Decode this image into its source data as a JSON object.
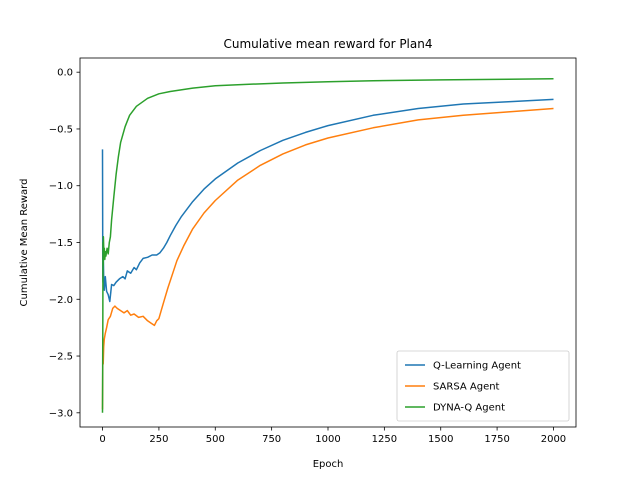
{
  "chart_data": {
    "type": "line",
    "title": "Cumulative mean reward for Plan4",
    "xlabel": "Epoch",
    "ylabel": "Cumulative Mean Reward",
    "xlim": [
      -100,
      2100
    ],
    "ylim": [
      -3.125,
      0.125
    ],
    "xticks": [
      0,
      250,
      500,
      750,
      1000,
      1250,
      1500,
      1750,
      2000
    ],
    "yticks": [
      0.0,
      -0.5,
      -1.0,
      -1.5,
      -2.0,
      -2.5,
      -3.0
    ],
    "xtick_labels": [
      "0",
      "250",
      "500",
      "750",
      "1000",
      "1250",
      "1500",
      "1750",
      "2000"
    ],
    "ytick_labels": [
      "0.0",
      "−0.5",
      "−1.0",
      "−1.5",
      "−2.0",
      "−2.5",
      "−3.0"
    ],
    "grid": false,
    "legend_position": "lower-right",
    "series": [
      {
        "name": "Q-Learning Agent",
        "color": "#1f77b4",
        "x": [
          0,
          1,
          2,
          3,
          5,
          8,
          12,
          18,
          25,
          32,
          40,
          50,
          60,
          75,
          90,
          100,
          110,
          125,
          140,
          150,
          165,
          180,
          200,
          220,
          240,
          255,
          270,
          285,
          300,
          325,
          350,
          400,
          450,
          500,
          600,
          700,
          800,
          900,
          1000,
          1200,
          1400,
          1600,
          1800,
          2000
        ],
        "y": [
          -0.68,
          -1.8,
          -1.85,
          -1.55,
          -1.82,
          -1.92,
          -1.8,
          -1.93,
          -1.96,
          -2.02,
          -1.87,
          -1.88,
          -1.85,
          -1.82,
          -1.8,
          -1.82,
          -1.75,
          -1.77,
          -1.72,
          -1.74,
          -1.68,
          -1.64,
          -1.63,
          -1.61,
          -1.61,
          -1.59,
          -1.55,
          -1.5,
          -1.44,
          -1.35,
          -1.27,
          -1.14,
          -1.03,
          -0.94,
          -0.8,
          -0.69,
          -0.6,
          -0.53,
          -0.47,
          -0.38,
          -0.32,
          -0.28,
          -0.26,
          -0.24
        ]
      },
      {
        "name": "SARSA Agent",
        "color": "#ff7f0e",
        "x": [
          0,
          1,
          2,
          3,
          5,
          8,
          12,
          18,
          25,
          35,
          45,
          55,
          65,
          80,
          95,
          110,
          125,
          140,
          160,
          180,
          200,
          215,
          230,
          240,
          250,
          260,
          275,
          290,
          310,
          330,
          360,
          400,
          450,
          500,
          600,
          700,
          800,
          900,
          1000,
          1200,
          1400,
          1600,
          1800,
          2000
        ],
        "y": [
          -2.97,
          -2.55,
          -2.4,
          -2.57,
          -2.42,
          -2.35,
          -2.3,
          -2.25,
          -2.18,
          -2.15,
          -2.08,
          -2.06,
          -2.08,
          -2.1,
          -2.12,
          -2.1,
          -2.14,
          -2.13,
          -2.16,
          -2.15,
          -2.19,
          -2.21,
          -2.23,
          -2.19,
          -2.17,
          -2.1,
          -2.0,
          -1.9,
          -1.78,
          -1.66,
          -1.53,
          -1.38,
          -1.24,
          -1.13,
          -0.95,
          -0.82,
          -0.72,
          -0.64,
          -0.58,
          -0.49,
          -0.42,
          -0.38,
          -0.35,
          -0.32
        ]
      },
      {
        "name": "DYNA-Q Agent",
        "color": "#2ca02c",
        "x": [
          0,
          1,
          2,
          3,
          4,
          6,
          8,
          10,
          12,
          15,
          20,
          25,
          30,
          35,
          40,
          50,
          60,
          70,
          80,
          100,
          120,
          150,
          200,
          250,
          300,
          400,
          500,
          600,
          800,
          1000,
          1200,
          1500,
          1800,
          2000
        ],
        "y": [
          -3.0,
          -2.3,
          -1.5,
          -1.7,
          -1.45,
          -1.6,
          -1.55,
          -1.65,
          -1.58,
          -1.62,
          -1.55,
          -1.6,
          -1.5,
          -1.45,
          -1.3,
          -1.1,
          -0.9,
          -0.75,
          -0.62,
          -0.48,
          -0.38,
          -0.3,
          -0.23,
          -0.19,
          -0.17,
          -0.14,
          -0.12,
          -0.11,
          -0.095,
          -0.085,
          -0.075,
          -0.068,
          -0.062,
          -0.058
        ]
      }
    ]
  }
}
